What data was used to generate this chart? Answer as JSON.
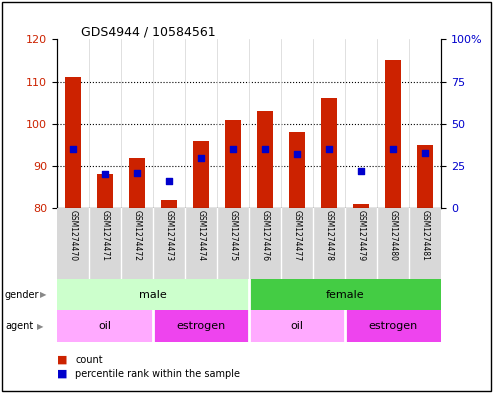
{
  "title": "GDS4944 / 10584561",
  "samples": [
    "GSM1274470",
    "GSM1274471",
    "GSM1274472",
    "GSM1274473",
    "GSM1274474",
    "GSM1274475",
    "GSM1274476",
    "GSM1274477",
    "GSM1274478",
    "GSM1274479",
    "GSM1274480",
    "GSM1274481"
  ],
  "count_values": [
    111,
    88,
    92,
    82,
    96,
    101,
    103,
    98,
    106,
    81,
    115,
    95
  ],
  "percentile_values": [
    35,
    20,
    21,
    16,
    30,
    35,
    35,
    32,
    35,
    22,
    35,
    33
  ],
  "ylim_left": [
    80,
    120
  ],
  "ylim_right": [
    0,
    100
  ],
  "yticks_left": [
    80,
    90,
    100,
    110,
    120
  ],
  "yticks_right": [
    0,
    25,
    50,
    75,
    100
  ],
  "bar_color": "#cc2200",
  "dot_color": "#0000cc",
  "bar_width": 0.5,
  "gender_male_samples": 6,
  "gender_female_samples": 6,
  "agent_oil_male": 3,
  "agent_estrogen_male": 3,
  "agent_oil_female": 3,
  "agent_estrogen_female": 3,
  "color_male_light": "#ccffcc",
  "color_female_green": "#44cc44",
  "color_oil": "#ffaaff",
  "color_estrogen": "#ee44ee"
}
